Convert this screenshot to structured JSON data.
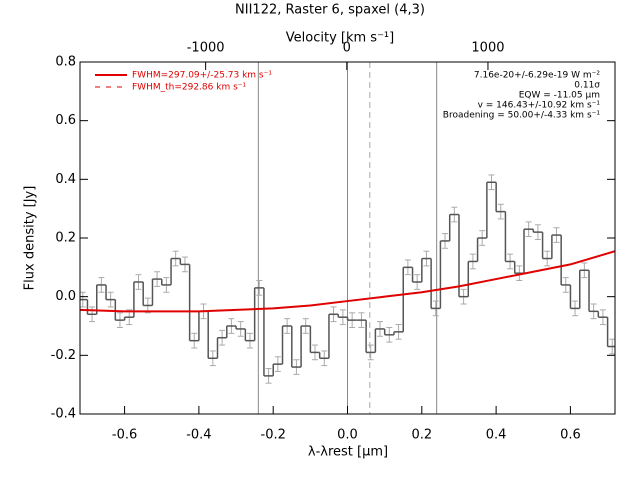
{
  "chart_data": {
    "type": "step",
    "title": "NII122, Raster 6, spaxel (4,3)",
    "xlabel": "λ-λrest [μm]",
    "ylabel": "Flux density [Jy]",
    "x2label": "Velocity [km s⁻¹]",
    "xlim": [
      -0.72,
      0.72
    ],
    "ylim": [
      -0.4,
      0.8
    ],
    "x2lim": [
      -1890,
      1900
    ],
    "xticks": [
      -0.6,
      -0.4,
      -0.2,
      {
        "value": 0,
        "label": "0.0"
      },
      0.2,
      0.4,
      0.6
    ],
    "yticks": [
      -0.4,
      -0.2,
      {
        "value": 0,
        "label": "0.0"
      },
      0.2,
      0.4,
      0.6,
      0.8
    ],
    "x2ticks": [
      -1000,
      0,
      1000
    ],
    "x": [
      -0.7125,
      -0.6875,
      -0.6625,
      -0.6375,
      -0.6125,
      -0.5875,
      -0.5625,
      -0.5375,
      -0.5125,
      -0.4875,
      -0.4625,
      -0.4375,
      -0.4125,
      -0.3875,
      -0.3625,
      -0.3375,
      -0.3125,
      -0.2875,
      -0.2625,
      -0.2375,
      -0.2125,
      -0.1875,
      -0.1625,
      -0.1375,
      -0.1125,
      -0.0875,
      -0.0625,
      -0.0375,
      -0.0125,
      0.0125,
      0.0375,
      0.0625,
      0.0875,
      0.1125,
      0.1375,
      0.1625,
      0.1875,
      0.2125,
      0.2375,
      0.2625,
      0.2875,
      0.3125,
      0.3375,
      0.3625,
      0.3875,
      0.4125,
      0.4375,
      0.4625,
      0.4875,
      0.5125,
      0.5375,
      0.5625,
      0.5875,
      0.6125,
      0.6375,
      0.6625,
      0.6875,
      0.7125
    ],
    "values": [
      -0.01,
      -0.06,
      0.04,
      -0.01,
      -0.08,
      -0.07,
      0.05,
      -0.03,
      0.06,
      0.04,
      0.13,
      0.11,
      -0.15,
      -0.05,
      -0.21,
      -0.14,
      -0.1,
      -0.11,
      -0.15,
      0.03,
      -0.27,
      -0.23,
      -0.1,
      -0.24,
      -0.1,
      -0.19,
      -0.21,
      -0.06,
      -0.07,
      -0.08,
      -0.08,
      -0.19,
      -0.11,
      -0.13,
      -0.12,
      0.1,
      0.05,
      0.13,
      -0.04,
      0.19,
      0.28,
      0.0,
      0.12,
      0.2,
      0.39,
      0.29,
      0.12,
      0.08,
      0.23,
      0.22,
      0.13,
      0.21,
      0.04,
      -0.04,
      0.09,
      -0.05,
      -0.07,
      -0.17
    ],
    "errors": [
      0.025,
      0.025,
      0.025,
      0.025,
      0.025,
      0.025,
      0.025,
      0.025,
      0.025,
      0.025,
      0.025,
      0.025,
      0.025,
      0.025,
      0.025,
      0.025,
      0.025,
      0.025,
      0.025,
      0.025,
      0.025,
      0.025,
      0.025,
      0.025,
      0.025,
      0.025,
      0.025,
      0.025,
      0.025,
      0.025,
      0.025,
      0.025,
      0.025,
      0.025,
      0.025,
      0.025,
      0.025,
      0.025,
      0.025,
      0.025,
      0.025,
      0.025,
      0.025,
      0.025,
      0.025,
      0.025,
      0.025,
      0.025,
      0.025,
      0.025,
      0.025,
      0.025,
      0.025,
      0.025,
      0.025,
      0.025,
      0.025,
      0.025
    ],
    "color": "#555555",
    "error_color": "#aaaaaa",
    "fit": {
      "name": "FWHM=297.09+/-25.73 km s⁻¹",
      "color": "#e00000",
      "x": [
        -0.72,
        -0.6,
        -0.4,
        -0.2,
        -0.1,
        0,
        0.1,
        0.2,
        0.3,
        0.4,
        0.5,
        0.6,
        0.72
      ],
      "values": [
        -0.045,
        -0.05,
        -0.05,
        -0.04,
        -0.03,
        -0.015,
        0.0,
        0.015,
        0.035,
        0.06,
        0.085,
        0.11,
        0.155
      ]
    },
    "fit_th_name": "FWHM_th=292.86 km s⁻¹",
    "vlines": [
      -0.24,
      0,
      0.24
    ],
    "dashed_vline": 0.06,
    "annotations": [
      "7.16e-20+/-6.29e-19 W m⁻²",
      "0.11σ",
      "EQW = -11.05 μm",
      "v = 146.43+/-10.92 km s⁻¹",
      "Broadening = 50.00+/-4.33 km s⁻¹"
    ]
  }
}
